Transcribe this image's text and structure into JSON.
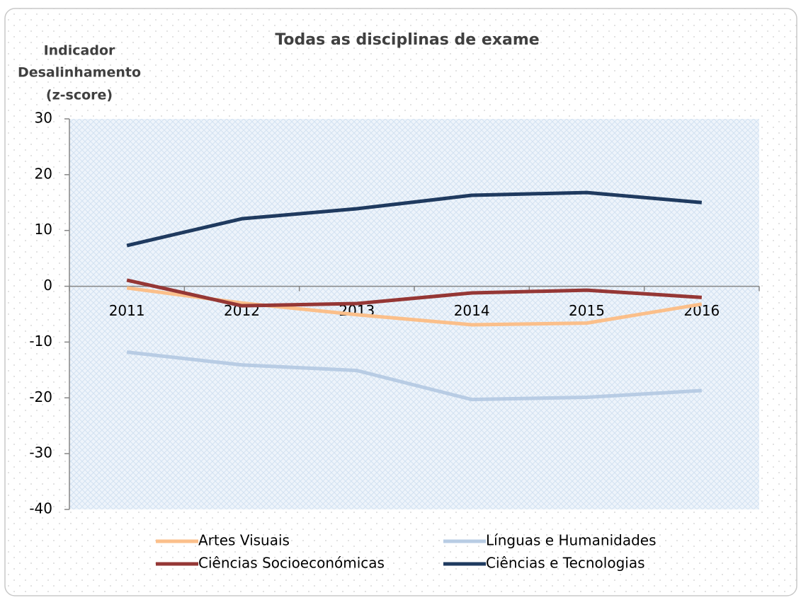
{
  "chart_data": {
    "type": "line",
    "title": "Todas as disciplinas de exame",
    "y_label": [
      "Indicador",
      "Desalinhamento",
      "(z-score)"
    ],
    "categories": [
      "2011",
      "2012",
      "2013",
      "2014",
      "2015",
      "2016"
    ],
    "series": [
      {
        "name": "Artes Visuais",
        "color": "#fbbf8a",
        "values": [
          -0.3,
          -3.0,
          -5.1,
          -6.9,
          -6.6,
          -3.2
        ]
      },
      {
        "name": "Línguas e Humanidades",
        "color": "#b8cce4",
        "values": [
          -11.8,
          -14.1,
          -15.1,
          -20.3,
          -19.9,
          -18.7
        ]
      },
      {
        "name": "Ciências Socioeconómicas",
        "color": "#953735",
        "values": [
          1.1,
          -3.5,
          -3.1,
          -1.2,
          -0.7,
          -2.0
        ]
      },
      {
        "name": "Ciências e Tecnologias",
        "color": "#1f3a5f",
        "values": [
          7.3,
          12.1,
          13.9,
          16.3,
          16.8,
          15.0
        ]
      }
    ],
    "ylim": [
      -40,
      30
    ],
    "yticks": [
      -40,
      -30,
      -20,
      -10,
      0,
      10,
      20,
      30
    ]
  }
}
